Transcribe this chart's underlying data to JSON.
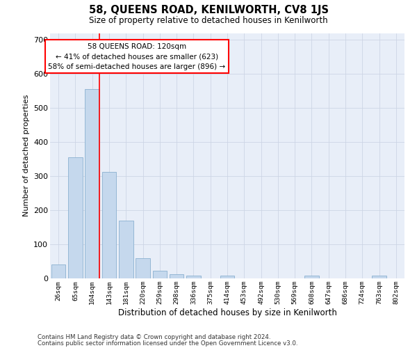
{
  "title": "58, QUEENS ROAD, KENILWORTH, CV8 1JS",
  "subtitle": "Size of property relative to detached houses in Kenilworth",
  "xlabel": "Distribution of detached houses by size in Kenilworth",
  "ylabel": "Number of detached properties",
  "bar_color": "#c5d8ed",
  "bar_edge_color": "#8ab0d0",
  "categories": [
    "26sqm",
    "65sqm",
    "104sqm",
    "143sqm",
    "181sqm",
    "220sqm",
    "259sqm",
    "298sqm",
    "336sqm",
    "375sqm",
    "414sqm",
    "453sqm",
    "492sqm",
    "530sqm",
    "569sqm",
    "608sqm",
    "647sqm",
    "686sqm",
    "724sqm",
    "763sqm",
    "802sqm"
  ],
  "values": [
    40,
    355,
    555,
    313,
    170,
    60,
    23,
    12,
    8,
    0,
    8,
    0,
    0,
    0,
    0,
    8,
    0,
    0,
    0,
    8,
    0
  ],
  "ylim_max": 720,
  "yticks": [
    0,
    100,
    200,
    300,
    400,
    500,
    600,
    700
  ],
  "annotation_line1": "58 QUEENS ROAD: 120sqm",
  "annotation_line2": "← 41% of detached houses are smaller (623)",
  "annotation_line3": "58% of semi-detached houses are larger (896) →",
  "grid_color": "#cdd5e5",
  "bg_color": "#e8eef8",
  "red_line_bin_index": 2,
  "footnote1": "Contains HM Land Registry data © Crown copyright and database right 2024.",
  "footnote2": "Contains public sector information licensed under the Open Government Licence v3.0."
}
